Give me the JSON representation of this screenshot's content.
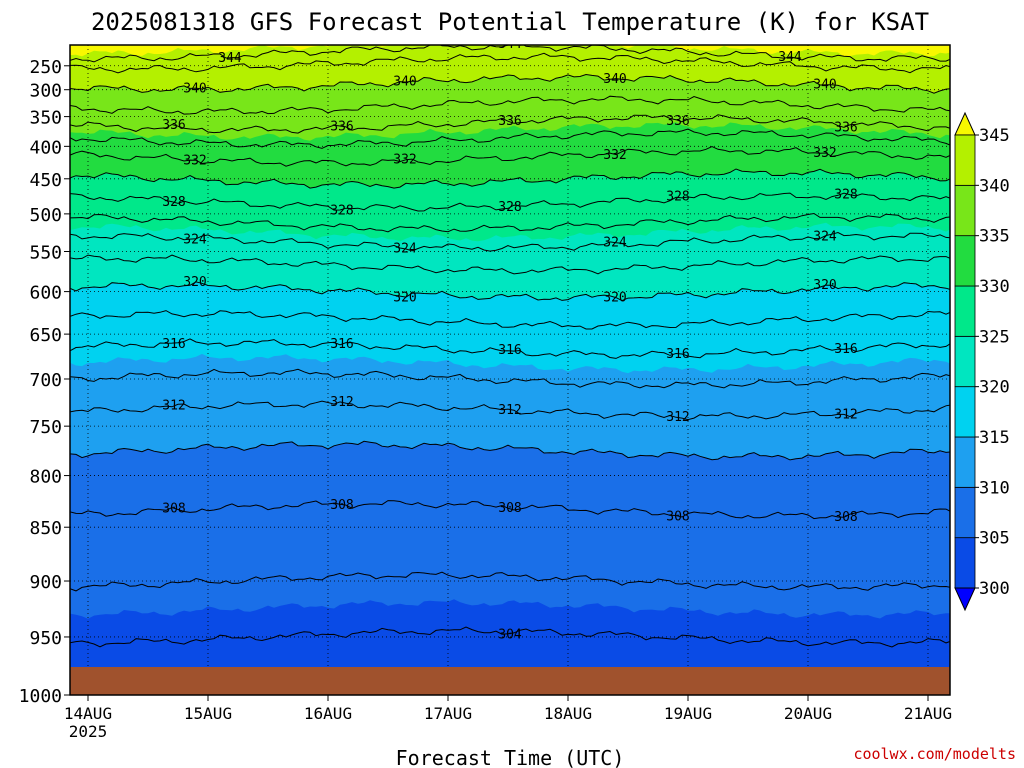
{
  "chart_data": {
    "type": "heatmap",
    "title": "2025081318 GFS Forecast Potential Temperature (K) for KSAT",
    "xlabel": "Forecast Time (UTC)",
    "ylabel": "",
    "credit": "coolwx.com/modelts",
    "x_ticks": [
      "14AUG",
      "15AUG",
      "16AUG",
      "17AUG",
      "18AUG",
      "19AUG",
      "20AUG",
      "21AUG"
    ],
    "x_year_label": "2025",
    "y_ticks": [
      250,
      300,
      350,
      400,
      450,
      500,
      550,
      600,
      650,
      700,
      750,
      800,
      850,
      900,
      950,
      1000
    ],
    "y_range": [
      200,
      1000
    ],
    "colorbar_levels": [
      300,
      305,
      310,
      315,
      320,
      325,
      330,
      335,
      340,
      345
    ],
    "colorbar_colors": [
      "#0000ff",
      "#0a4be6",
      "#1a6fe8",
      "#1ea0f0",
      "#00d2f0",
      "#00e6c0",
      "#00e88a",
      "#22dc40",
      "#78e619",
      "#b4f000",
      "#f8f800"
    ],
    "contour_interval": 4,
    "contour_levels": [
      304,
      308,
      312,
      316,
      320,
      324,
      328,
      332,
      336,
      340,
      344
    ],
    "contour_labels": [
      {
        "text": "344"
      },
      {
        "text": "344"
      },
      {
        "text": "344"
      },
      {
        "text": "340"
      },
      {
        "text": "340"
      },
      {
        "text": "340"
      },
      {
        "text": "340"
      },
      {
        "text": "336"
      },
      {
        "text": "336"
      },
      {
        "text": "336"
      },
      {
        "text": "336"
      },
      {
        "text": "336"
      },
      {
        "text": "332"
      },
      {
        "text": "332"
      },
      {
        "text": "332"
      },
      {
        "text": "332"
      },
      {
        "text": "328"
      },
      {
        "text": "328"
      },
      {
        "text": "328"
      },
      {
        "text": "328"
      },
      {
        "text": "328"
      },
      {
        "text": "324"
      },
      {
        "text": "324"
      },
      {
        "text": "324"
      },
      {
        "text": "324"
      },
      {
        "text": "320"
      },
      {
        "text": "320"
      },
      {
        "text": "320"
      },
      {
        "text": "320"
      },
      {
        "text": "316"
      },
      {
        "text": "316"
      },
      {
        "text": "316"
      },
      {
        "text": "316"
      },
      {
        "text": "316"
      },
      {
        "text": "312"
      },
      {
        "text": "312"
      },
      {
        "text": "312"
      },
      {
        "text": "312"
      },
      {
        "text": "312"
      },
      {
        "text": "308"
      },
      {
        "text": "308"
      },
      {
        "text": "308"
      },
      {
        "text": "308"
      },
      {
        "text": "308"
      },
      {
        "text": "304"
      }
    ],
    "theta_profile": [
      {
        "p": 200,
        "theta": 345.5
      },
      {
        "p": 250,
        "theta": 341.5
      },
      {
        "p": 300,
        "theta": 339.5
      },
      {
        "p": 350,
        "theta": 337
      },
      {
        "p": 400,
        "theta": 333
      },
      {
        "p": 450,
        "theta": 330
      },
      {
        "p": 500,
        "theta": 327
      },
      {
        "p": 550,
        "theta": 323
      },
      {
        "p": 600,
        "theta": 320
      },
      {
        "p": 650,
        "theta": 317
      },
      {
        "p": 700,
        "theta": 314
      },
      {
        "p": 750,
        "theta": 311
      },
      {
        "p": 800,
        "theta": 309
      },
      {
        "p": 850,
        "theta": 307.5
      },
      {
        "p": 900,
        "theta": 306
      },
      {
        "p": 950,
        "theta": 304
      },
      {
        "p": 1000,
        "theta": 302
      }
    ],
    "ground_color": "#a0522d",
    "grid": true
  }
}
